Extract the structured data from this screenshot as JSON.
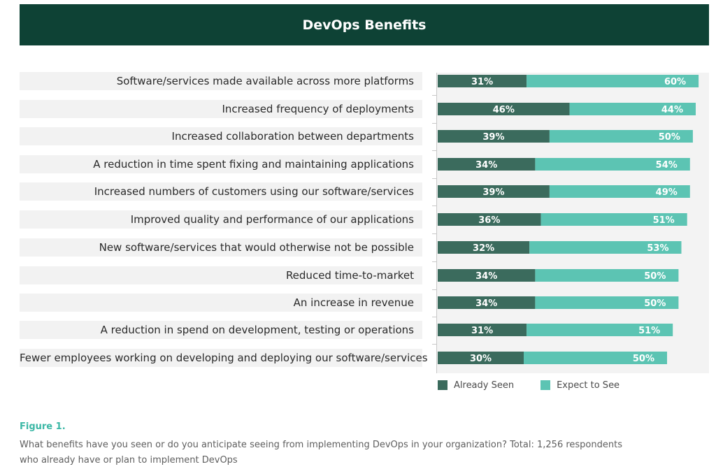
{
  "header": {
    "title": "DevOps Benefits"
  },
  "colors": {
    "header_bg": "#0e4235",
    "already_seen": "#3b6b5d",
    "expect_to_see": "#5cc4b3",
    "figure_label": "#3cb8a6"
  },
  "chart_data": {
    "type": "bar",
    "orientation": "horizontal",
    "stacked": true,
    "title": "DevOps Benefits",
    "categories": [
      "Software/services made available across more platforms",
      "Increased frequency of deployments",
      "Increased collaboration between departments",
      "A reduction in time spent fixing and maintaining applications",
      "Increased numbers of customers using our software/services",
      "Improved quality and performance of our applications",
      "New software/services that would otherwise not be possible",
      "Reduced time-to-market",
      "An increase in revenue",
      "A reduction in spend on development, testing or operations",
      "Fewer employees working on developing and deploying our software/services"
    ],
    "series": [
      {
        "name": "Already Seen",
        "values": [
          31,
          46,
          39,
          34,
          39,
          36,
          32,
          34,
          34,
          31,
          30
        ]
      },
      {
        "name": "Expect to See",
        "values": [
          60,
          44,
          50,
          54,
          49,
          51,
          53,
          50,
          50,
          51,
          50
        ]
      }
    ],
    "value_suffix": "%",
    "xlim": [
      0,
      100
    ],
    "legend_position": "bottom-left"
  },
  "legend": {
    "already_seen": "Already Seen",
    "expect_to_see": "Expect to See"
  },
  "figure": {
    "label": "Figure 1.",
    "caption": "What benefits have you seen or do you anticipate seeing from implementing DevOps in your organization? Total: 1,256 respondents who already have or plan to implement DevOps"
  }
}
